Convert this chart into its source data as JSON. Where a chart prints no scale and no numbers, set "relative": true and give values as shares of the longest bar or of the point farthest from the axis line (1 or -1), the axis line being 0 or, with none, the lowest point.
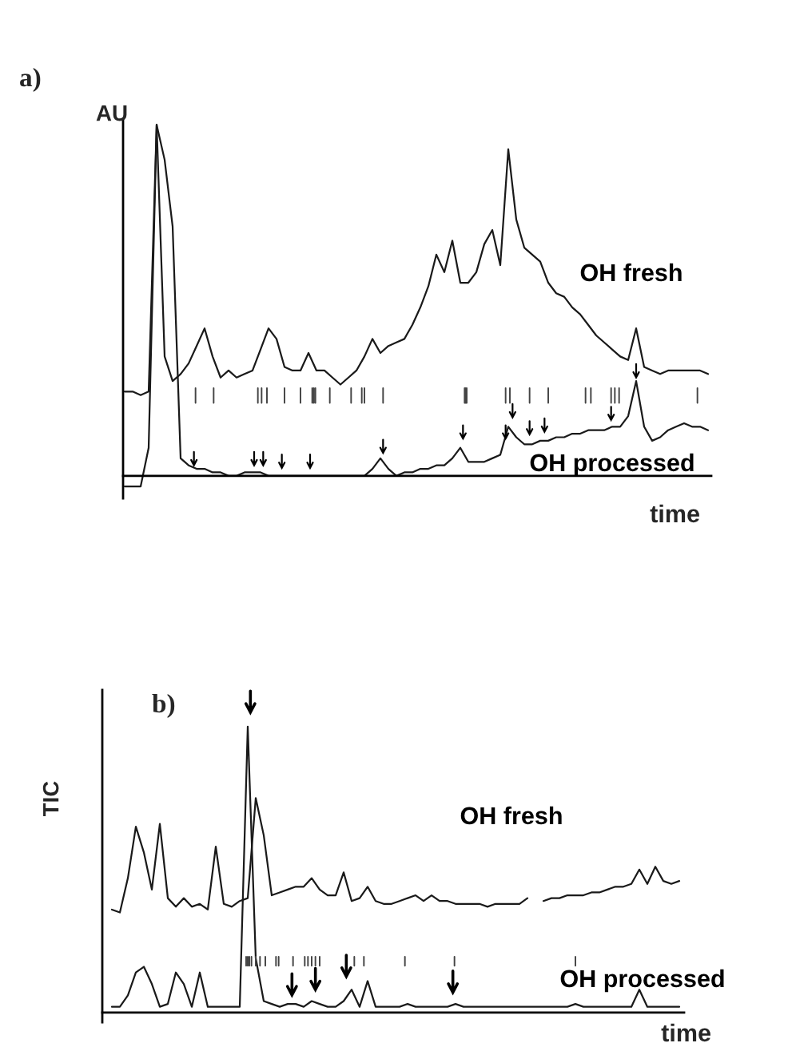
{
  "chart_data": [
    {
      "type": "line",
      "title": "a)",
      "xlabel": "time",
      "ylabel": "AU",
      "relative": true,
      "tick_labels": false,
      "categories": [
        null,
        null,
        null,
        null,
        null,
        null,
        null,
        null,
        null,
        null,
        null,
        null,
        null,
        null,
        null,
        null,
        null,
        null,
        null,
        null,
        null,
        null,
        null,
        null,
        null,
        null,
        null,
        null,
        null,
        null,
        null,
        null,
        null,
        null,
        null,
        null,
        null,
        null,
        null,
        null,
        null,
        null,
        null,
        null,
        null,
        null,
        null,
        null,
        null,
        null,
        null,
        null,
        null,
        null,
        null,
        null,
        null,
        null,
        null,
        null,
        null,
        null,
        null,
        null,
        null,
        null,
        null,
        null,
        null,
        null,
        null,
        null,
        null,
        null
      ],
      "series": [
        {
          "name": "OH fresh",
          "color": "#1a1a1a",
          "values": [
            0.24,
            0.24,
            0.23,
            0.24,
            1.0,
            0.34,
            0.27,
            0.29,
            0.32,
            0.37,
            0.42,
            0.34,
            0.28,
            0.3,
            0.28,
            0.29,
            0.3,
            0.36,
            0.42,
            0.39,
            0.31,
            0.3,
            0.3,
            0.35,
            0.3,
            0.3,
            0.28,
            0.26,
            0.28,
            0.3,
            0.34,
            0.39,
            0.35,
            0.37,
            0.38,
            0.39,
            0.43,
            0.48,
            0.54,
            0.63,
            0.58,
            0.67,
            0.55,
            0.55,
            0.58,
            0.66,
            0.7,
            0.6,
            0.93,
            0.73,
            0.65,
            0.63,
            0.61,
            0.55,
            0.52,
            0.51,
            0.48,
            0.46,
            0.43,
            0.4,
            0.38,
            0.36,
            0.34,
            0.33,
            0.42,
            0.31,
            0.3,
            0.29,
            0.3,
            0.3,
            0.3,
            0.3,
            0.3,
            0.29
          ]
        },
        {
          "name": "OH processed",
          "color": "#1a1a1a",
          "values": [
            -0.03,
            -0.03,
            -0.03,
            0.08,
            1.0,
            0.9,
            0.71,
            0.05,
            0.03,
            0.02,
            0.02,
            0.01,
            0.01,
            0.0,
            0.0,
            0.01,
            0.01,
            0.01,
            0.0,
            0.0,
            0.0,
            0.0,
            0.0,
            0.0,
            0.0,
            0.0,
            0.0,
            0.0,
            0.0,
            0.0,
            0.0,
            0.02,
            0.05,
            0.02,
            0.0,
            0.01,
            0.01,
            0.02,
            0.02,
            0.03,
            0.03,
            0.05,
            0.08,
            0.04,
            0.04,
            0.04,
            0.05,
            0.06,
            0.14,
            0.11,
            0.09,
            0.09,
            0.1,
            0.1,
            0.11,
            0.11,
            0.12,
            0.12,
            0.13,
            0.13,
            0.13,
            0.14,
            0.14,
            0.17,
            0.27,
            0.14,
            0.1,
            0.11,
            0.13,
            0.14,
            0.15,
            0.14,
            0.14,
            0.13
          ]
        }
      ]
    },
    {
      "type": "line",
      "title": "b)",
      "xlabel": "time",
      "ylabel": "TIC",
      "relative": true,
      "tick_labels": false,
      "categories": [
        null,
        null,
        null,
        null,
        null,
        null,
        null,
        null,
        null,
        null,
        null,
        null,
        null,
        null,
        null,
        null,
        null,
        null,
        null,
        null,
        null,
        null,
        null,
        null,
        null,
        null,
        null,
        null,
        null,
        null,
        null,
        null,
        null,
        null,
        null,
        null,
        null,
        null,
        null,
        null,
        null,
        null,
        null,
        null,
        null,
        null,
        null,
        null,
        null,
        null,
        null,
        null,
        null,
        null,
        null,
        null,
        null,
        null,
        null,
        null,
        null,
        null,
        null,
        null,
        null,
        null,
        null,
        null,
        null,
        null,
        null,
        null
      ],
      "series": [
        {
          "name": "OH fresh",
          "color": "#1a1a1a",
          "values": [
            0.36,
            0.35,
            0.47,
            0.65,
            0.56,
            0.43,
            0.66,
            0.4,
            0.37,
            0.4,
            0.37,
            0.38,
            0.36,
            0.58,
            0.38,
            0.37,
            0.39,
            0.4,
            0.75,
            0.62,
            0.41,
            0.42,
            0.43,
            0.44,
            0.44,
            0.47,
            0.43,
            0.41,
            0.41,
            0.49,
            0.39,
            0.4,
            0.44,
            0.39,
            0.38,
            0.38,
            0.39,
            0.4,
            0.41,
            0.39,
            0.41,
            0.39,
            0.39,
            0.38,
            0.38,
            0.38,
            0.38,
            0.37,
            0.38,
            0.38,
            0.38,
            0.38,
            0.4,
            null,
            0.39,
            0.4,
            0.4,
            0.41,
            0.41,
            0.41,
            0.42,
            0.42,
            0.43,
            0.44,
            0.44,
            0.45,
            0.5,
            0.45,
            0.51,
            0.46,
            0.45,
            0.46
          ]
        },
        {
          "name": "OH processed",
          "color": "#1a1a1a",
          "values": [
            0.02,
            0.02,
            0.06,
            0.14,
            0.16,
            0.1,
            0.02,
            0.03,
            0.14,
            0.1,
            0.02,
            0.14,
            0.02,
            0.02,
            0.02,
            0.02,
            0.02,
            1.0,
            0.19,
            0.04,
            0.03,
            0.02,
            0.03,
            0.03,
            0.02,
            0.04,
            0.03,
            0.02,
            0.02,
            0.04,
            0.08,
            0.02,
            0.11,
            0.02,
            0.02,
            0.02,
            0.02,
            0.03,
            0.02,
            0.02,
            0.02,
            0.02,
            0.02,
            0.03,
            0.02,
            0.02,
            0.02,
            0.02,
            0.02,
            0.02,
            0.02,
            0.02,
            0.02,
            0.02,
            0.02,
            0.02,
            0.02,
            0.02,
            0.03,
            0.02,
            0.02,
            0.02,
            0.02,
            0.02,
            0.02,
            0.02,
            0.08,
            0.02,
            0.02,
            0.02,
            0.02,
            0.02
          ]
        }
      ]
    }
  ]
}
